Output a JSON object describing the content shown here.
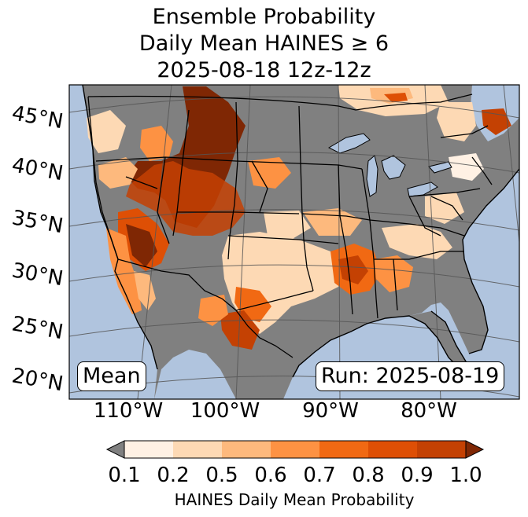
{
  "title": {
    "line1": "Ensemble Probability",
    "line2": "Daily Mean HAINES ≥ 6",
    "line3": "2025-08-18 12z-12z"
  },
  "map": {
    "latitude_labels": [
      "45°N",
      "40°N",
      "35°N",
      "30°N",
      "25°N",
      "20°N"
    ],
    "longitude_labels": [
      "110°W",
      "100°W",
      "90°W",
      "80°W"
    ],
    "mean_label": "Mean",
    "run_label": "Run: 2025-08-19",
    "colors": {
      "ocean": "#b0c4de",
      "land_missing": "#808080",
      "borders": "#000000",
      "gridlines": "#555555"
    }
  },
  "colorbar": {
    "ticks": [
      "0.1",
      "0.2",
      "0.5",
      "0.6",
      "0.7",
      "0.8",
      "0.9",
      "1.0"
    ],
    "label": "HAINES Daily Mean Probability",
    "under_color": "#808080",
    "over_color": "#7f2704",
    "bins": [
      {
        "from": 0.1,
        "to": 0.2,
        "color": "#fff1e4"
      },
      {
        "from": 0.2,
        "to": 0.5,
        "color": "#fdd9b4"
      },
      {
        "from": 0.5,
        "to": 0.6,
        "color": "#fdb97d"
      },
      {
        "from": 0.6,
        "to": 0.7,
        "color": "#fd9243"
      },
      {
        "from": 0.7,
        "to": 0.8,
        "color": "#f16913"
      },
      {
        "from": 0.8,
        "to": 0.9,
        "color": "#de4f05"
      },
      {
        "from": 0.9,
        "to": 1.0,
        "color": "#c44103"
      }
    ]
  }
}
